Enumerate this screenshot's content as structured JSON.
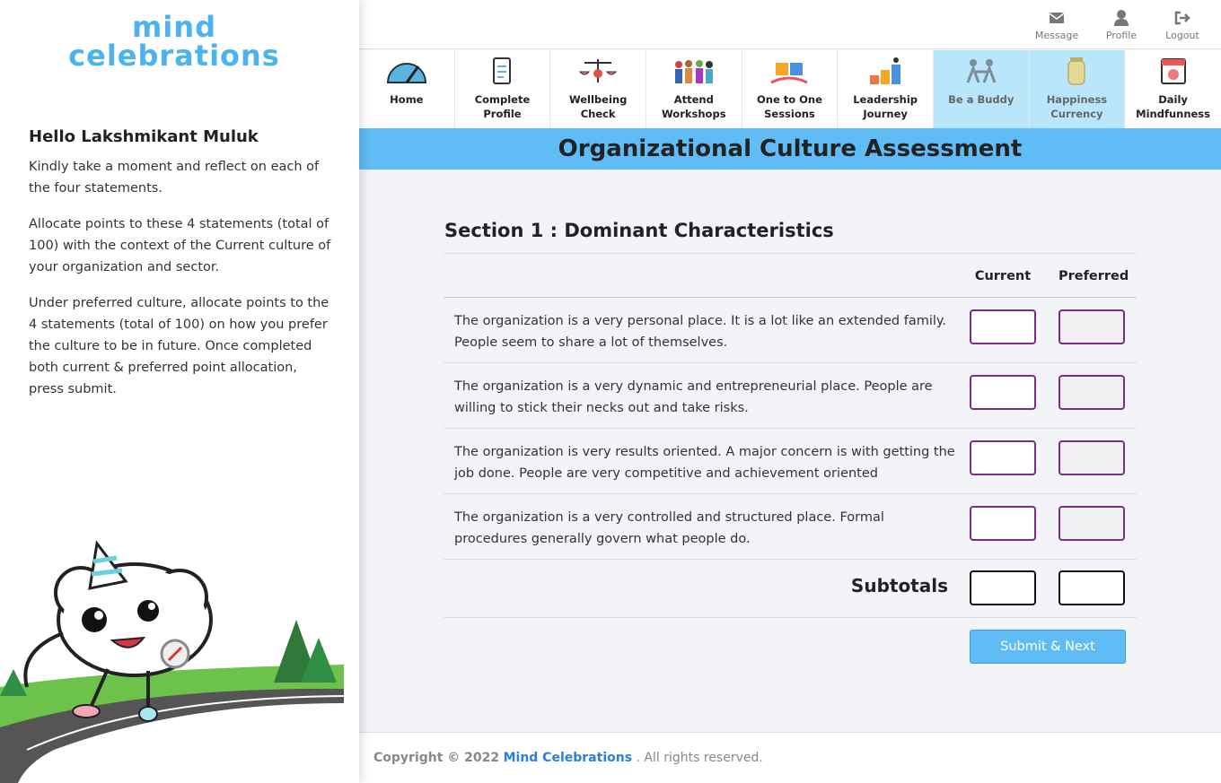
{
  "sidebar": {
    "logo_line1": "mind",
    "logo_line2": "celebrations",
    "greeting": "Hello Lakshmikant Muluk",
    "paragraphs": [
      "Kindly take a moment and reflect on each of the four statements.",
      "Allocate points to these 4 statements (total of 100) with the context of the Current culture of your organization and sector.",
      "Under preferred culture, allocate points to the 4 statements (total of 100) on how you prefer the culture to be in future. Once completed both current & preferred point allocation, press submit."
    ]
  },
  "header": {
    "message_label": "Message",
    "profile_label": "Profile",
    "logout_label": "Logout"
  },
  "nav": {
    "tiles": [
      {
        "label": "Home"
      },
      {
        "label": "Complete Profile"
      },
      {
        "label": "Wellbeing Check"
      },
      {
        "label": "Attend Workshops"
      },
      {
        "label": "One to One Sessions"
      },
      {
        "label": "Leadership Journey"
      },
      {
        "label": "Be a Buddy"
      },
      {
        "label": "Happiness Currency"
      },
      {
        "label": "Daily Mindfunness"
      }
    ]
  },
  "page": {
    "title": "Organizational Culture Assessment",
    "section_title": "Section 1 : Dominant Characteristics",
    "col_current": "Current",
    "col_preferred": "Preferred",
    "statements": [
      "The organization is a very personal place. It is a lot like an extended family. People seem to share a lot of themselves.",
      "The organization is a very dynamic and entrepreneurial place. People are willing to stick their necks out and take risks.",
      "The organization is very results oriented. A major concern is with getting the job done. People are very competitive and achievement oriented",
      "The organization is a very controlled and structured place. Formal procedures generally govern what people do."
    ],
    "subtotals_label": "Subtotals",
    "submit_label": "Submit & Next"
  },
  "footer": {
    "copyright": "Copyright © 2022",
    "brand": "Mind Celebrations",
    "suffix": ". All rights reserved."
  },
  "colors": {
    "accent": "#5fbcf5",
    "input_border": "#7b2c83",
    "brand_link": "#2a80d8",
    "active_tile": "#b9e6fb"
  }
}
